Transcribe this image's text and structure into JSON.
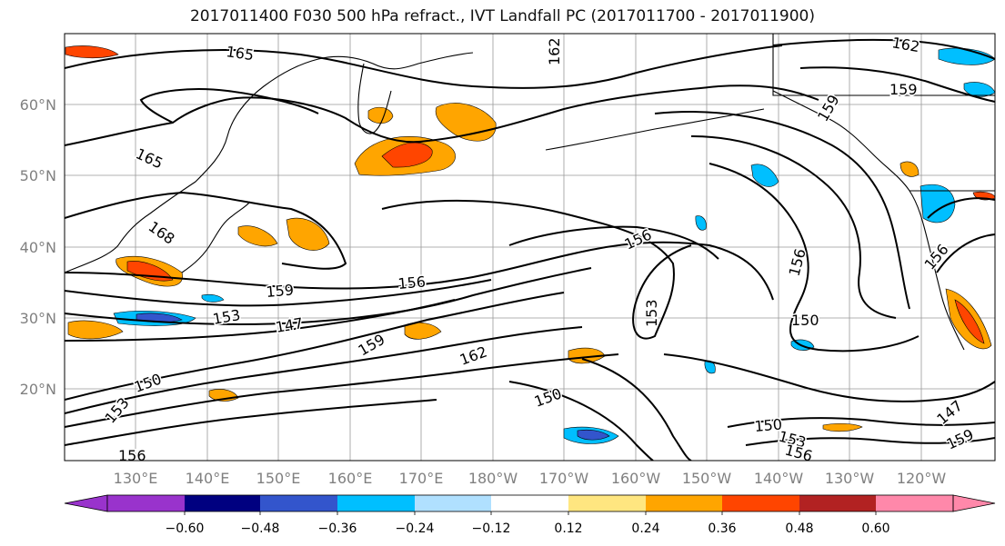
{
  "title": "2017011400 F030 500 hPa refract., IVT Landfall PC (2017011700 - 2017011900)",
  "lat_labels": [
    "60°N",
    "50°N",
    "40°N",
    "30°N",
    "20°N"
  ],
  "lon_labels": [
    "130°E",
    "140°E",
    "150°E",
    "160°E",
    "170°E",
    "180°W",
    "170°W",
    "160°W",
    "150°W",
    "140°W",
    "130°W",
    "120°W"
  ],
  "contour_labels": [
    "165",
    "165",
    "168",
    "162",
    "159",
    "156",
    "159",
    "153",
    "147",
    "156",
    "159",
    "162",
    "150",
    "150",
    "156",
    "153",
    "150",
    "153",
    "150",
    "153",
    "156",
    "156",
    "159",
    "147",
    "156",
    "162",
    "159"
  ],
  "colorbar": {
    "ticks": [
      "−0.60",
      "−0.48",
      "−0.36",
      "−0.24",
      "−0.12",
      "0.12",
      "0.24",
      "0.36",
      "0.48",
      "0.60"
    ],
    "colors": [
      "#9933cc",
      "#000080",
      "#3355cc",
      "#00bfff",
      "#b0e0ff",
      "#ffffff",
      "#ffe680",
      "#ffa500",
      "#ff4500",
      "#b22222",
      "#ff88aa",
      "#ff88aa"
    ]
  }
}
